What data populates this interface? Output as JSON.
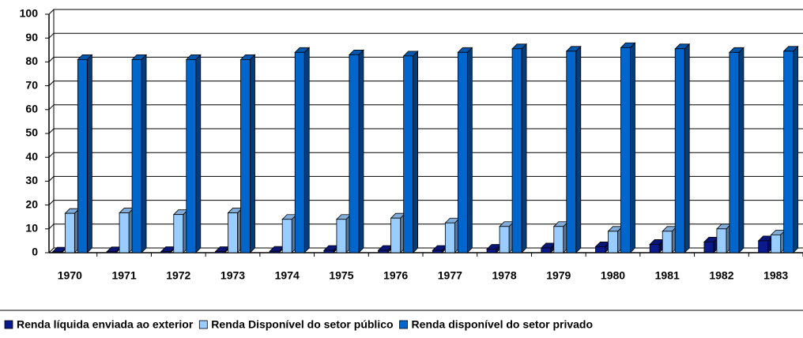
{
  "chart_data": {
    "type": "bar",
    "categories": [
      "1970",
      "1971",
      "1972",
      "1973",
      "1974",
      "1975",
      "1976",
      "1977",
      "1978",
      "1979",
      "1980",
      "1981",
      "1982",
      "1983"
    ],
    "series": [
      {
        "name": "Renda líquida enviada ao exterior",
        "color": "#0a1a8c",
        "values": [
          0.3,
          0.4,
          0.5,
          0.5,
          0.6,
          1,
          1,
          1,
          1.5,
          2,
          2.5,
          3.5,
          4.5,
          5
        ]
      },
      {
        "name": "Renda Disponível do setor público",
        "color": "#99ccff",
        "values": [
          16.5,
          16.7,
          16,
          16.7,
          14,
          14,
          14.5,
          12.5,
          11,
          11,
          9,
          9,
          10,
          7.5
        ]
      },
      {
        "name": "Renda disponível do setor privado",
        "color": "#0066cc",
        "values": [
          81,
          81,
          81,
          81,
          84,
          83,
          82.5,
          84,
          85.5,
          84.5,
          86,
          85.5,
          84,
          84.5
        ]
      }
    ],
    "ylim": [
      0,
      100
    ],
    "yticks": [
      0,
      10,
      20,
      30,
      40,
      50,
      60,
      70,
      80,
      90,
      100
    ],
    "grid": true
  }
}
